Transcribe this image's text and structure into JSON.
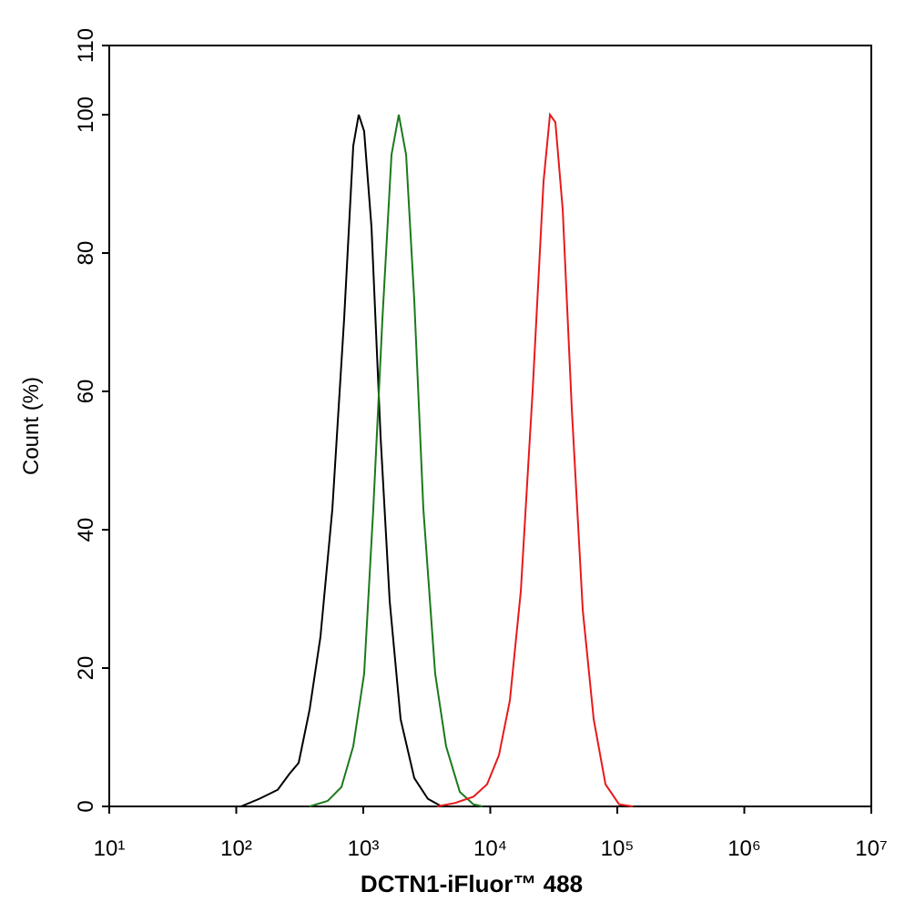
{
  "chart_data": {
    "type": "line",
    "xlabel": "DCTN1-iFluor™ 488",
    "ylabel": "Count  (%)",
    "xscale": "log",
    "xlim": [
      10,
      10000000
    ],
    "xticks": [
      {
        "value": 10,
        "label": "10¹"
      },
      {
        "value": 100,
        "label": "10²"
      },
      {
        "value": 1000,
        "label": "10³"
      },
      {
        "value": 10000,
        "label": "10⁴"
      },
      {
        "value": 100000,
        "label": "10⁵"
      },
      {
        "value": 1000000,
        "label": "10⁶"
      },
      {
        "value": 10000000,
        "label": "10⁷"
      }
    ],
    "ylim": [
      0,
      110
    ],
    "yticks": [
      0,
      20,
      40,
      60,
      80,
      100,
      110
    ],
    "series": [
      {
        "color": "#000000",
        "x": [
          109,
          152,
          212,
          262,
          310,
          378,
          460,
          571,
          707,
          834,
          921,
          1016,
          1161,
          1369,
          1614,
          1968,
          2520,
          3225,
          4130
        ],
        "values": [
          0,
          1.1,
          2.4,
          4.7,
          6.3,
          14,
          24.5,
          43,
          70.5,
          95.5,
          100,
          97.6,
          83.7,
          53.4,
          29.7,
          12.6,
          4.1,
          1.1,
          0
        ]
      },
      {
        "color": "#1a7a1a",
        "x": [
          378,
          525,
          673,
          834,
          1016,
          1199,
          1415,
          1668,
          1904,
          2174,
          2520,
          2972,
          3681,
          4487,
          5754,
          7364,
          8690
        ],
        "values": [
          0,
          0.8,
          2.8,
          8.7,
          19.2,
          43,
          70.5,
          94.2,
          100,
          94.2,
          73.2,
          43,
          19.2,
          8.7,
          2.1,
          0.3,
          0
        ]
      },
      {
        "color": "#e8191b",
        "x": [
          3810,
          5296,
          7364,
          9436,
          11700,
          14260,
          17390,
          21540,
          26250,
          29510,
          32560,
          37170,
          43850,
          53460,
          65190,
          80760,
          103300,
          132400
        ],
        "values": [
          0,
          0.5,
          1.4,
          3.2,
          7.4,
          15.3,
          31.1,
          60,
          90.3,
          100,
          98.9,
          86.3,
          57.4,
          28.4,
          12.6,
          3.2,
          0.3,
          0
        ]
      }
    ]
  }
}
